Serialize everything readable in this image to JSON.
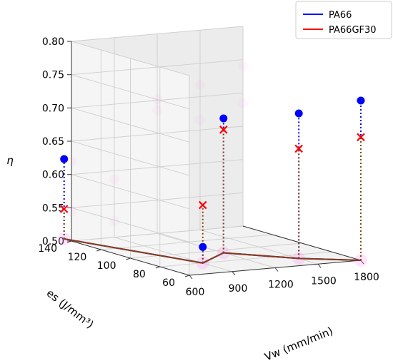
{
  "chart_data": {
    "type": "scatter-3d",
    "xlabel": "Vw (mm/min)",
    "ylabel": "es (J/mm³)",
    "zlabel": "η",
    "xticks": [
      600,
      900,
      1200,
      1500,
      1800
    ],
    "yticks": [
      60,
      80,
      100,
      120,
      140
    ],
    "zticks": [
      "0.50",
      "0.55",
      "0.60",
      "0.65",
      "0.70",
      "0.75",
      "0.80"
    ],
    "xlim": [
      600,
      1800
    ],
    "ylim": [
      60,
      140
    ],
    "zlim": [
      0.5,
      0.8
    ],
    "grid": true,
    "legend_position": "top-right",
    "series": [
      {
        "name": "PA66",
        "color": "#0000ff",
        "marker": "circle",
        "points": [
          {
            "vw": 600,
            "es": 145,
            "eta": 0.62
          },
          {
            "vw": 900,
            "es": 80,
            "eta": 0.524
          },
          {
            "vw": 1200,
            "es": 95,
            "eta": 0.702
          },
          {
            "vw": 1500,
            "es": 73,
            "eta": 0.718
          },
          {
            "vw": 1800,
            "es": 60,
            "eta": 0.74
          }
        ]
      },
      {
        "name": "PA66GF30",
        "color": "#ff0000",
        "marker": "x",
        "points": [
          {
            "vw": 600,
            "es": 145,
            "eta": 0.545
          },
          {
            "vw": 900,
            "es": 80,
            "eta": 0.587
          },
          {
            "vw": 1200,
            "es": 95,
            "eta": 0.685
          },
          {
            "vw": 1500,
            "es": 73,
            "eta": 0.665
          },
          {
            "vw": 1800,
            "es": 60,
            "eta": 0.685
          }
        ]
      }
    ]
  }
}
